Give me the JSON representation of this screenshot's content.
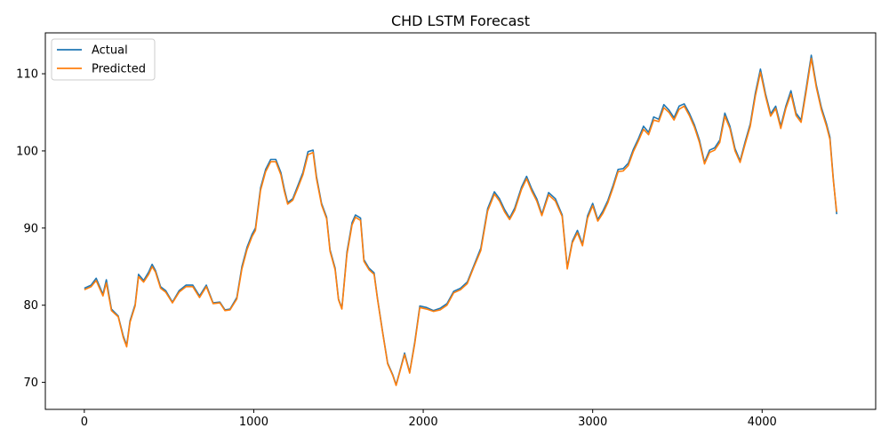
{
  "chart_data": {
    "type": "line",
    "title": "CHD LSTM Forecast",
    "xlabel": "",
    "ylabel": "",
    "xlim": [
      -230,
      4670
    ],
    "ylim": [
      66.5,
      115.3
    ],
    "xticks": [
      0,
      1000,
      2000,
      3000,
      4000
    ],
    "yticks": [
      70,
      80,
      90,
      100,
      110
    ],
    "grid": false,
    "legend_position": "top-left",
    "series": [
      {
        "name": "Actual",
        "color": "#1f77b4",
        "points": [
          [
            0,
            82.2
          ],
          [
            40,
            82.6
          ],
          [
            70,
            83.5
          ],
          [
            110,
            81.4
          ],
          [
            130,
            83.3
          ],
          [
            160,
            79.5
          ],
          [
            200,
            78.6
          ],
          [
            230,
            76.0
          ],
          [
            250,
            74.8
          ],
          [
            270,
            78.0
          ],
          [
            300,
            80.1
          ],
          [
            320,
            84.0
          ],
          [
            350,
            83.2
          ],
          [
            380,
            84.3
          ],
          [
            400,
            85.3
          ],
          [
            420,
            84.5
          ],
          [
            450,
            82.4
          ],
          [
            480,
            81.9
          ],
          [
            520,
            80.4
          ],
          [
            560,
            81.9
          ],
          [
            600,
            82.6
          ],
          [
            640,
            82.6
          ],
          [
            680,
            81.2
          ],
          [
            720,
            82.6
          ],
          [
            760,
            80.3
          ],
          [
            800,
            80.4
          ],
          [
            830,
            79.4
          ],
          [
            860,
            79.5
          ],
          [
            900,
            81.0
          ],
          [
            930,
            85.0
          ],
          [
            960,
            87.5
          ],
          [
            990,
            89.2
          ],
          [
            1010,
            90.0
          ],
          [
            1040,
            95.2
          ],
          [
            1070,
            97.6
          ],
          [
            1100,
            98.9
          ],
          [
            1130,
            98.9
          ],
          [
            1160,
            97.2
          ],
          [
            1180,
            95.1
          ],
          [
            1200,
            93.3
          ],
          [
            1230,
            93.8
          ],
          [
            1260,
            95.5
          ],
          [
            1290,
            97.2
          ],
          [
            1320,
            99.9
          ],
          [
            1350,
            100.1
          ],
          [
            1370,
            96.7
          ],
          [
            1400,
            93.2
          ],
          [
            1430,
            91.4
          ],
          [
            1450,
            87.2
          ],
          [
            1480,
            84.8
          ],
          [
            1500,
            80.8
          ],
          [
            1520,
            79.6
          ],
          [
            1550,
            86.9
          ],
          [
            1580,
            90.7
          ],
          [
            1600,
            91.7
          ],
          [
            1630,
            91.3
          ],
          [
            1650,
            85.9
          ],
          [
            1680,
            84.8
          ],
          [
            1710,
            84.2
          ],
          [
            1730,
            80.9
          ],
          [
            1760,
            76.6
          ],
          [
            1790,
            72.5
          ],
          [
            1820,
            71.0
          ],
          [
            1840,
            69.7
          ],
          [
            1860,
            71.3
          ],
          [
            1890,
            73.8
          ],
          [
            1920,
            71.3
          ],
          [
            1950,
            75.2
          ],
          [
            1980,
            79.9
          ],
          [
            2020,
            79.7
          ],
          [
            2060,
            79.3
          ],
          [
            2100,
            79.6
          ],
          [
            2140,
            80.2
          ],
          [
            2180,
            81.8
          ],
          [
            2220,
            82.2
          ],
          [
            2260,
            83.0
          ],
          [
            2300,
            85.2
          ],
          [
            2340,
            87.4
          ],
          [
            2380,
            92.5
          ],
          [
            2420,
            94.7
          ],
          [
            2450,
            93.8
          ],
          [
            2480,
            92.4
          ],
          [
            2510,
            91.3
          ],
          [
            2540,
            92.6
          ],
          [
            2580,
            95.3
          ],
          [
            2610,
            96.7
          ],
          [
            2640,
            95.1
          ],
          [
            2670,
            93.8
          ],
          [
            2700,
            91.8
          ],
          [
            2740,
            94.6
          ],
          [
            2780,
            93.8
          ],
          [
            2820,
            91.7
          ],
          [
            2850,
            84.9
          ],
          [
            2880,
            88.3
          ],
          [
            2910,
            89.7
          ],
          [
            2940,
            87.9
          ],
          [
            2970,
            91.6
          ],
          [
            3000,
            93.2
          ],
          [
            3030,
            91.1
          ],
          [
            3060,
            92.2
          ],
          [
            3090,
            93.6
          ],
          [
            3120,
            95.5
          ],
          [
            3150,
            97.6
          ],
          [
            3180,
            97.7
          ],
          [
            3210,
            98.4
          ],
          [
            3240,
            100.2
          ],
          [
            3270,
            101.6
          ],
          [
            3300,
            103.2
          ],
          [
            3330,
            102.4
          ],
          [
            3360,
            104.4
          ],
          [
            3390,
            104.1
          ],
          [
            3420,
            106.0
          ],
          [
            3450,
            105.3
          ],
          [
            3480,
            104.3
          ],
          [
            3510,
            105.8
          ],
          [
            3540,
            106.1
          ],
          [
            3570,
            104.9
          ],
          [
            3600,
            103.4
          ],
          [
            3630,
            101.4
          ],
          [
            3660,
            98.5
          ],
          [
            3690,
            100.1
          ],
          [
            3720,
            100.4
          ],
          [
            3750,
            101.4
          ],
          [
            3780,
            104.9
          ],
          [
            3810,
            103.2
          ],
          [
            3840,
            100.3
          ],
          [
            3870,
            98.7
          ],
          [
            3900,
            101.2
          ],
          [
            3930,
            103.5
          ],
          [
            3960,
            107.5
          ],
          [
            3990,
            110.6
          ],
          [
            4020,
            107.4
          ],
          [
            4050,
            104.8
          ],
          [
            4080,
            105.8
          ],
          [
            4110,
            103.2
          ],
          [
            4140,
            105.8
          ],
          [
            4170,
            107.8
          ],
          [
            4200,
            104.9
          ],
          [
            4230,
            104.0
          ],
          [
            4260,
            108.1
          ],
          [
            4290,
            112.4
          ],
          [
            4320,
            108.5
          ],
          [
            4350,
            105.6
          ],
          [
            4380,
            103.5
          ],
          [
            4400,
            101.8
          ],
          [
            4420,
            96.4
          ],
          [
            4440,
            91.8
          ]
        ]
      },
      {
        "name": "Predicted",
        "color": "#ff7f0e",
        "points": [
          [
            0,
            82.0
          ],
          [
            40,
            82.4
          ],
          [
            70,
            83.2
          ],
          [
            110,
            81.2
          ],
          [
            130,
            82.9
          ],
          [
            160,
            79.3
          ],
          [
            200,
            78.5
          ],
          [
            230,
            75.8
          ],
          [
            250,
            74.6
          ],
          [
            270,
            77.8
          ],
          [
            300,
            79.9
          ],
          [
            320,
            83.7
          ],
          [
            350,
            83.0
          ],
          [
            380,
            84.0
          ],
          [
            400,
            85.0
          ],
          [
            420,
            84.3
          ],
          [
            450,
            82.2
          ],
          [
            480,
            81.7
          ],
          [
            520,
            80.3
          ],
          [
            560,
            81.7
          ],
          [
            600,
            82.4
          ],
          [
            640,
            82.4
          ],
          [
            680,
            81.0
          ],
          [
            720,
            82.4
          ],
          [
            760,
            80.2
          ],
          [
            800,
            80.3
          ],
          [
            830,
            79.3
          ],
          [
            860,
            79.4
          ],
          [
            900,
            80.8
          ],
          [
            930,
            84.7
          ],
          [
            960,
            87.2
          ],
          [
            990,
            88.9
          ],
          [
            1010,
            89.7
          ],
          [
            1040,
            94.9
          ],
          [
            1070,
            97.3
          ],
          [
            1100,
            98.6
          ],
          [
            1130,
            98.6
          ],
          [
            1160,
            96.9
          ],
          [
            1180,
            94.8
          ],
          [
            1200,
            93.1
          ],
          [
            1230,
            93.6
          ],
          [
            1260,
            95.2
          ],
          [
            1290,
            96.9
          ],
          [
            1320,
            99.5
          ],
          [
            1350,
            99.8
          ],
          [
            1370,
            96.4
          ],
          [
            1400,
            93.0
          ],
          [
            1430,
            91.2
          ],
          [
            1450,
            87.0
          ],
          [
            1480,
            84.6
          ],
          [
            1500,
            80.7
          ],
          [
            1520,
            79.5
          ],
          [
            1550,
            86.6
          ],
          [
            1580,
            90.4
          ],
          [
            1600,
            91.4
          ],
          [
            1630,
            91.0
          ],
          [
            1650,
            85.7
          ],
          [
            1680,
            84.6
          ],
          [
            1710,
            84.0
          ],
          [
            1730,
            80.8
          ],
          [
            1760,
            76.5
          ],
          [
            1790,
            72.4
          ],
          [
            1820,
            70.9
          ],
          [
            1840,
            69.6
          ],
          [
            1860,
            71.2
          ],
          [
            1890,
            73.6
          ],
          [
            1920,
            71.2
          ],
          [
            1950,
            75.0
          ],
          [
            1980,
            79.7
          ],
          [
            2020,
            79.5
          ],
          [
            2060,
            79.2
          ],
          [
            2100,
            79.4
          ],
          [
            2140,
            80.0
          ],
          [
            2180,
            81.6
          ],
          [
            2220,
            82.0
          ],
          [
            2260,
            82.8
          ],
          [
            2300,
            85.0
          ],
          [
            2340,
            87.1
          ],
          [
            2380,
            92.2
          ],
          [
            2420,
            94.4
          ],
          [
            2450,
            93.5
          ],
          [
            2480,
            92.1
          ],
          [
            2510,
            91.1
          ],
          [
            2540,
            92.3
          ],
          [
            2580,
            95.0
          ],
          [
            2610,
            96.4
          ],
          [
            2640,
            94.8
          ],
          [
            2670,
            93.5
          ],
          [
            2700,
            91.6
          ],
          [
            2740,
            94.3
          ],
          [
            2780,
            93.5
          ],
          [
            2820,
            91.5
          ],
          [
            2850,
            84.7
          ],
          [
            2880,
            88.1
          ],
          [
            2910,
            89.4
          ],
          [
            2940,
            87.7
          ],
          [
            2970,
            91.3
          ],
          [
            3000,
            92.9
          ],
          [
            3030,
            90.9
          ],
          [
            3060,
            91.9
          ],
          [
            3090,
            93.3
          ],
          [
            3120,
            95.2
          ],
          [
            3150,
            97.3
          ],
          [
            3180,
            97.4
          ],
          [
            3210,
            98.1
          ],
          [
            3240,
            99.9
          ],
          [
            3270,
            101.3
          ],
          [
            3300,
            102.8
          ],
          [
            3330,
            102.1
          ],
          [
            3360,
            104.0
          ],
          [
            3390,
            103.8
          ],
          [
            3420,
            105.6
          ],
          [
            3450,
            105.0
          ],
          [
            3480,
            104.0
          ],
          [
            3510,
            105.4
          ],
          [
            3540,
            105.8
          ],
          [
            3570,
            104.6
          ],
          [
            3600,
            103.1
          ],
          [
            3630,
            101.1
          ],
          [
            3660,
            98.3
          ],
          [
            3690,
            99.8
          ],
          [
            3720,
            100.1
          ],
          [
            3750,
            101.1
          ],
          [
            3780,
            104.5
          ],
          [
            3810,
            102.9
          ],
          [
            3840,
            100.0
          ],
          [
            3870,
            98.5
          ],
          [
            3900,
            100.9
          ],
          [
            3930,
            103.2
          ],
          [
            3960,
            107.1
          ],
          [
            3990,
            110.2
          ],
          [
            4020,
            107.1
          ],
          [
            4050,
            104.5
          ],
          [
            4080,
            105.5
          ],
          [
            4110,
            102.9
          ],
          [
            4140,
            105.5
          ],
          [
            4170,
            107.4
          ],
          [
            4200,
            104.6
          ],
          [
            4230,
            103.7
          ],
          [
            4260,
            107.7
          ],
          [
            4290,
            112.0
          ],
          [
            4320,
            108.2
          ],
          [
            4350,
            105.3
          ],
          [
            4380,
            103.2
          ],
          [
            4400,
            101.5
          ],
          [
            4420,
            96.2
          ],
          [
            4440,
            92.1
          ]
        ]
      }
    ]
  }
}
